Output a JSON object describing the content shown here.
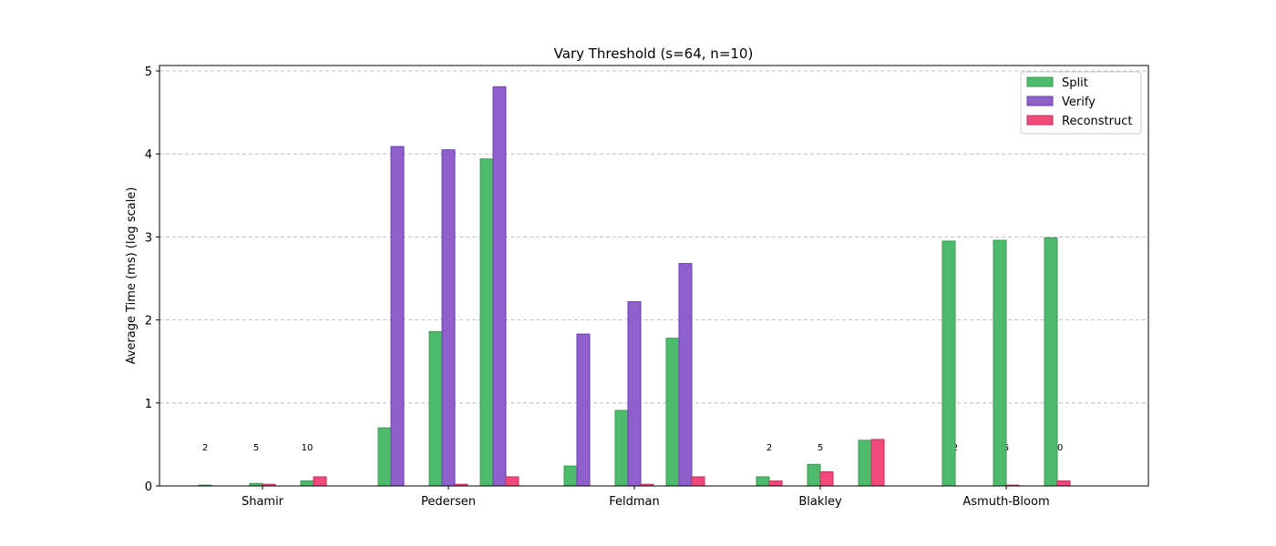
{
  "chart_data": {
    "type": "bar",
    "title": "Vary Threshold (s=64, n=10)",
    "xlabel": "",
    "ylabel": "Average Time (ms) (log scale)",
    "ylim": [
      0,
      5
    ],
    "yticks": [
      0,
      1,
      2,
      3,
      4,
      5
    ],
    "grid": true,
    "legend_position": "top-right",
    "categories": [
      "Shamir",
      "Pedersen",
      "Feldman",
      "Blakley",
      "Asmuth-Bloom"
    ],
    "thresholds": [
      "2",
      "5",
      "10"
    ],
    "series": [
      {
        "name": "Split",
        "color": "#4cbb6c",
        "edge": "#3a9a52",
        "values": [
          [
            0.01,
            0.03,
            0.06
          ],
          [
            0.7,
            1.86,
            3.94
          ],
          [
            0.24,
            0.91,
            1.78
          ],
          [
            0.11,
            0.26,
            0.55
          ],
          [
            2.95,
            2.96,
            2.99
          ]
        ]
      },
      {
        "name": "Verify",
        "color": "#8f5fcb",
        "edge": "#6a3fb0",
        "values": [
          [
            0,
            0,
            0
          ],
          [
            4.09,
            4.05,
            4.81
          ],
          [
            1.83,
            2.22,
            2.68
          ],
          [
            0,
            0,
            0
          ],
          [
            0,
            0,
            0
          ]
        ]
      },
      {
        "name": "Reconstruct",
        "color": "#f0497c",
        "edge": "#c8325c",
        "values": [
          [
            0,
            0.02,
            0.11
          ],
          [
            0,
            0.02,
            0.11
          ],
          [
            0,
            0.02,
            0.11
          ],
          [
            0.06,
            0.17,
            0.56
          ],
          [
            0,
            0.01,
            0.06
          ]
        ]
      }
    ]
  }
}
